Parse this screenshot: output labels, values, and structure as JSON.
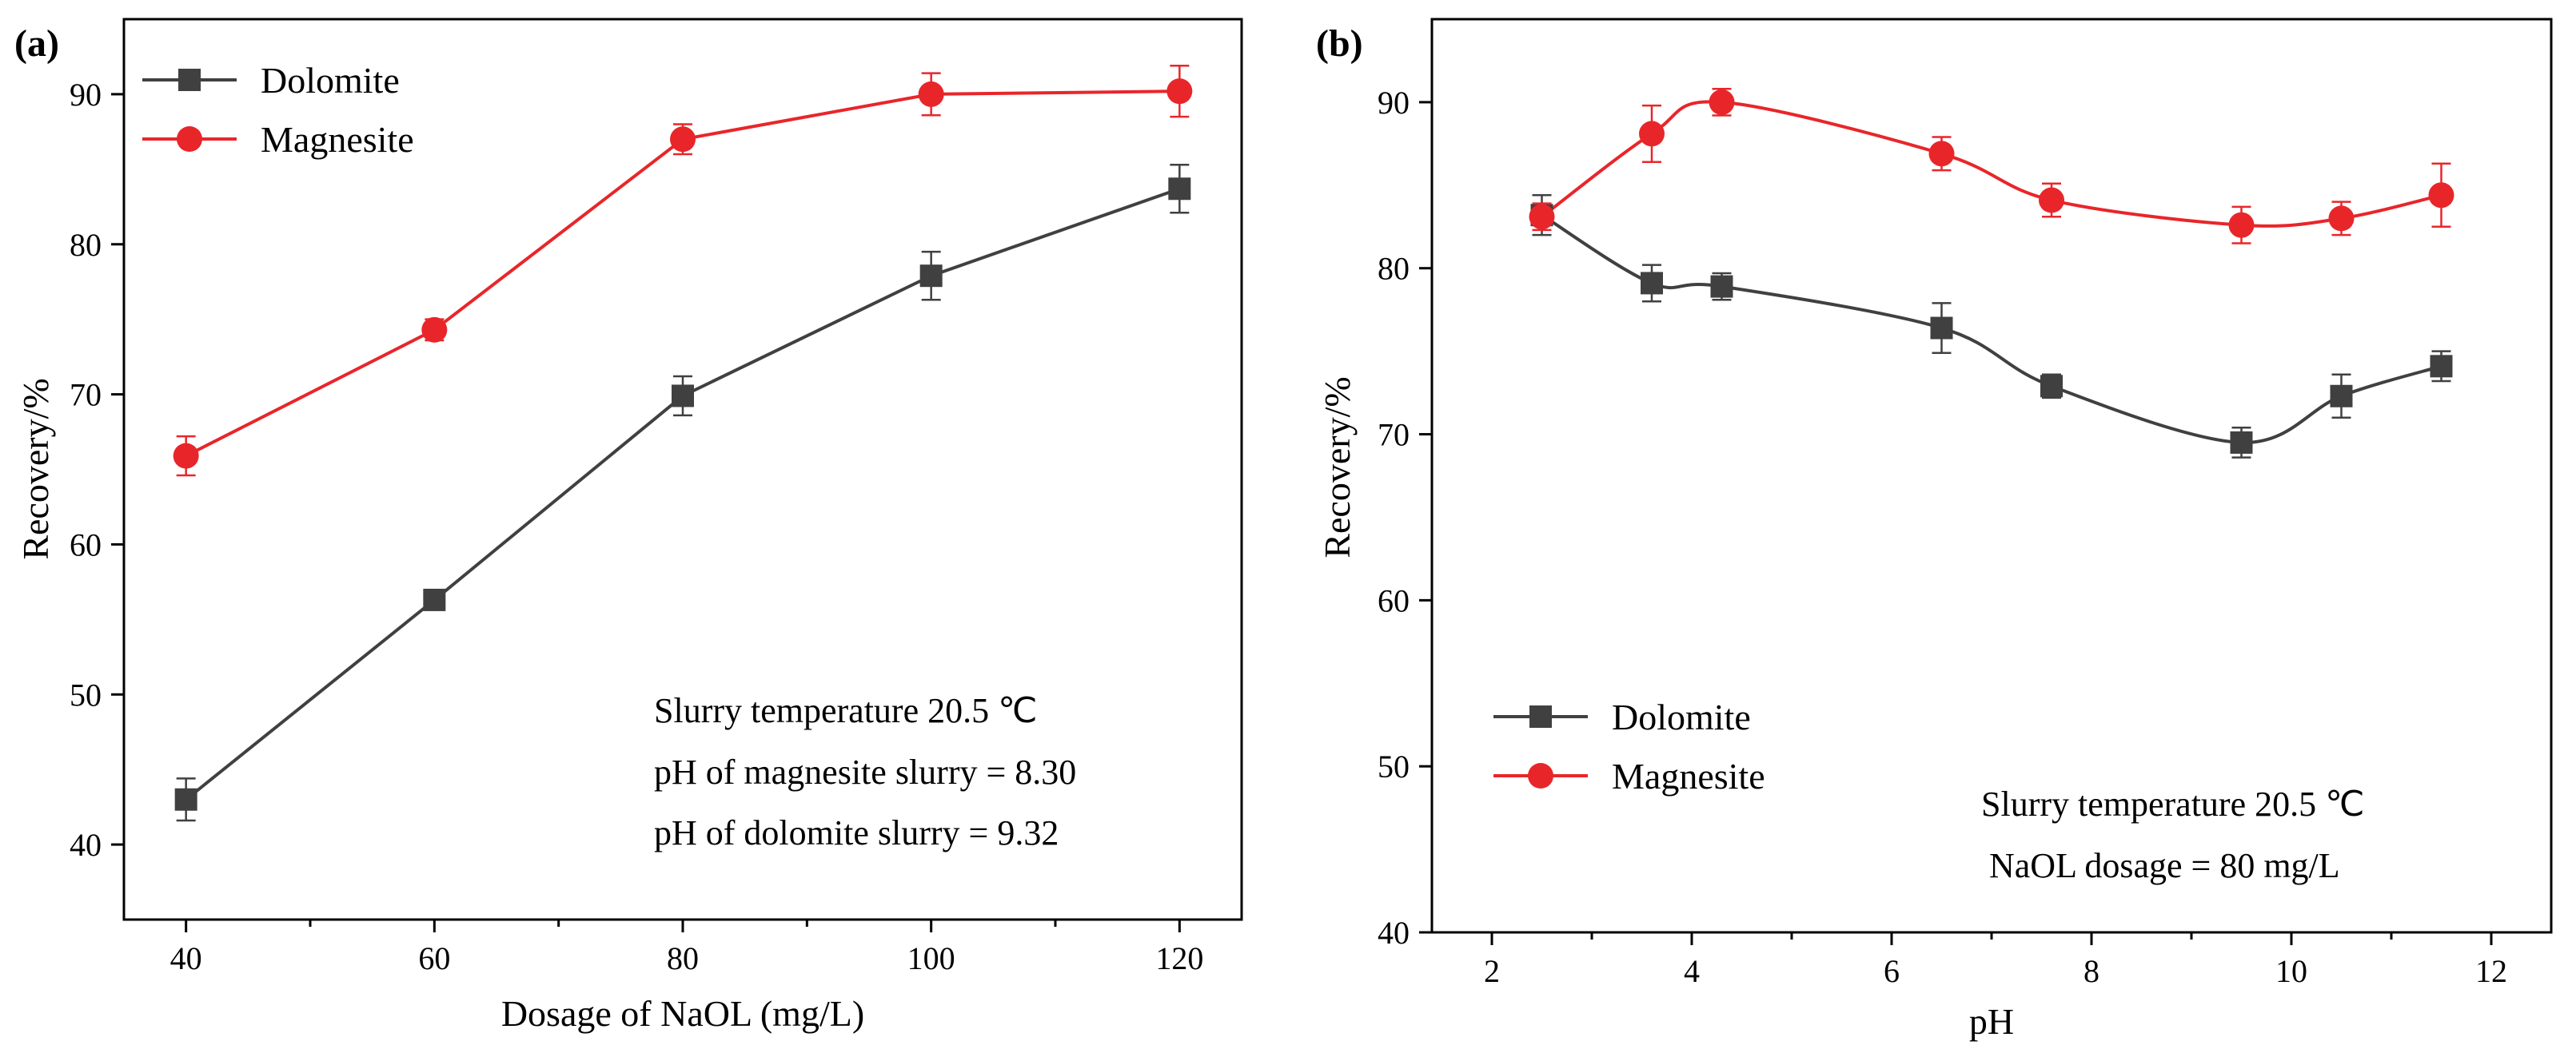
{
  "chart_data": [
    {
      "panel": "(a)",
      "type": "line",
      "xlabel": "Dosage of NaOL (mg/L)",
      "ylabel": "Recovery/%",
      "xlim": [
        35,
        125
      ],
      "ylim": [
        35,
        95
      ],
      "x_ticks": [
        40,
        60,
        80,
        100,
        120
      ],
      "x_minor_ticks": [
        50,
        70,
        90,
        110
      ],
      "y_ticks": [
        40,
        50,
        60,
        70,
        80,
        90
      ],
      "x": [
        40,
        60,
        80,
        100,
        120
      ],
      "series": [
        {
          "name": "Dolomite",
          "color": "#404040",
          "marker": "square",
          "values": [
            43.0,
            56.3,
            69.9,
            77.9,
            83.7
          ],
          "errors": [
            1.4,
            0.5,
            1.3,
            1.6,
            1.6
          ]
        },
        {
          "name": "Magnesite",
          "color": "#e8262a",
          "marker": "circle",
          "values": [
            65.9,
            74.3,
            87.0,
            90.0,
            90.2
          ],
          "errors": [
            1.3,
            0.7,
            1.0,
            1.4,
            1.7
          ]
        }
      ],
      "legend_position": "top-left",
      "annotations": [
        "Slurry temperature 20.5 ℃",
        "pH of magnesite slurry = 8.30",
        "pH of dolomite slurry = 9.32"
      ]
    },
    {
      "panel": "(b)",
      "type": "line",
      "xlabel": "pH",
      "ylabel": "Recovery/%",
      "xlim": [
        1.4,
        12.6
      ],
      "ylim": [
        40,
        95
      ],
      "x_ticks": [
        2,
        4,
        6,
        8,
        10,
        12
      ],
      "x_minor_ticks": [
        3,
        5,
        7,
        9,
        11
      ],
      "y_ticks": [
        40,
        50,
        60,
        70,
        80,
        90
      ],
      "x": [
        2.5,
        3.6,
        4.3,
        6.5,
        7.6,
        9.5,
        10.5,
        11.5
      ],
      "series": [
        {
          "name": "Dolomite",
          "color": "#404040",
          "marker": "square",
          "values": [
            83.2,
            79.1,
            78.9,
            76.4,
            72.9,
            69.5,
            72.3,
            74.1
          ],
          "errors": [
            1.2,
            1.1,
            0.8,
            1.5,
            0.7,
            0.9,
            1.3,
            0.9
          ]
        },
        {
          "name": "Magnesite",
          "color": "#e8262a",
          "marker": "circle",
          "values": [
            83.1,
            88.1,
            90.0,
            86.9,
            84.1,
            82.6,
            83.0,
            84.4
          ],
          "errors": [
            0.8,
            1.7,
            0.8,
            1.0,
            1.0,
            1.1,
            1.0,
            1.9
          ]
        }
      ],
      "legend_position": "lower-left",
      "annotations": [
        "Slurry temperature 20.5 ℃",
        "NaOL dosage = 80 mg/L"
      ]
    }
  ]
}
